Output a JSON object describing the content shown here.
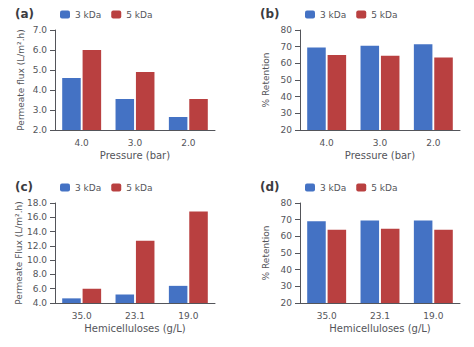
{
  "chart_data": [
    {
      "type": "bar",
      "title": "(a)",
      "categories": [
        "4.0",
        "3.0",
        "2.0"
      ],
      "series": [
        {
          "name": "3 kDa",
          "color": "#4472C4",
          "values": [
            4.6,
            3.55,
            2.65
          ]
        },
        {
          "name": "5 kDa",
          "color": "#B94040",
          "values": [
            6.0,
            4.9,
            3.55
          ]
        }
      ],
      "xlabel": "Pressure (bar)",
      "ylabel": "Permeate flux (L/m².h)",
      "ylim": [
        2.0,
        7.0
      ],
      "yticks": [
        {
          "value": 2.0,
          "label": "2.0"
        },
        {
          "value": 3.0,
          "label": "3.0"
        },
        {
          "value": 4.0,
          "label": "4.0"
        },
        {
          "value": 5.0,
          "label": "5.0"
        },
        {
          "value": 6.0,
          "label": "6.0"
        },
        {
          "value": 7.0,
          "label": "7.0"
        }
      ],
      "legend": "upper left",
      "grid": false
    },
    {
      "type": "bar",
      "title": "(b)",
      "categories": [
        "4.0",
        "3.0",
        "2.0"
      ],
      "series": [
        {
          "name": "3 kDa",
          "color": "#4472C4",
          "values": [
            69.5,
            70.5,
            71.5
          ]
        },
        {
          "name": "5 kDa",
          "color": "#B94040",
          "values": [
            65.0,
            64.5,
            63.5
          ]
        }
      ],
      "xlabel": "Pressure (bar)",
      "ylabel": "% Retention",
      "ylim": [
        20,
        80
      ],
      "yticks": [
        20,
        30,
        40,
        50,
        60,
        70,
        80
      ],
      "legend": "upper left",
      "grid": false
    },
    {
      "type": "bar",
      "title": "(c)",
      "categories": [
        "35.0",
        "23.1",
        "19.0"
      ],
      "series": [
        {
          "name": "3 kDa",
          "color": "#4472C4",
          "values": [
            4.65,
            5.2,
            6.4
          ]
        },
        {
          "name": "5 kDa",
          "color": "#B94040",
          "values": [
            6.0,
            12.7,
            16.8
          ]
        }
      ],
      "xlabel": "Hemicelluloses (g/L)",
      "ylabel": "Permeate Flux (L/m².h)",
      "ylim": [
        4.0,
        18.0
      ],
      "yticks": [
        {
          "value": 4.0,
          "label": "4.0"
        },
        {
          "value": 6.0,
          "label": "6.0"
        },
        {
          "value": 8.0,
          "label": "8.0"
        },
        {
          "value": 10.0,
          "label": "10.0"
        },
        {
          "value": 12.0,
          "label": "12.0"
        },
        {
          "value": 14.0,
          "label": "14.0"
        },
        {
          "value": 16.0,
          "label": "16.0"
        },
        {
          "value": 18.0,
          "label": "18.0"
        }
      ],
      "legend": "upper left",
      "grid": false
    },
    {
      "type": "bar",
      "title": "(d)",
      "categories": [
        "35.0",
        "23.1",
        "19.0"
      ],
      "series": [
        {
          "name": "3 kDa",
          "color": "#4472C4",
          "values": [
            69.0,
            69.5,
            69.5
          ]
        },
        {
          "name": "5 kDa",
          "color": "#B94040",
          "values": [
            64.0,
            64.5,
            64.0
          ]
        }
      ],
      "xlabel": "Hemicelluloses (g/L)",
      "ylabel": "% Retention",
      "ylim": [
        20,
        80
      ],
      "yticks": [
        20,
        30,
        40,
        50,
        60,
        70,
        80
      ],
      "legend": "upper left",
      "grid": false
    }
  ]
}
